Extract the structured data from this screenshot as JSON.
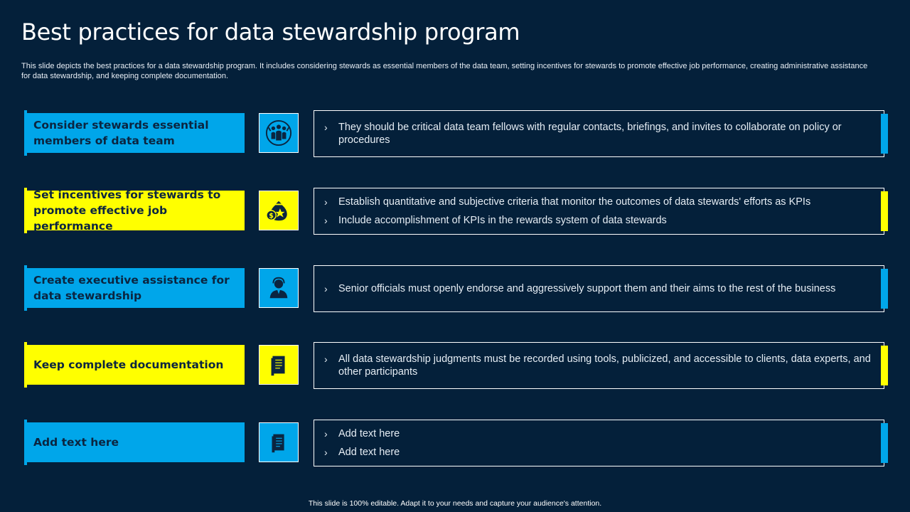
{
  "title": "Best practices for data stewardship program",
  "subtitle": "This slide depicts the best practices for a data stewardship program. It includes considering stewards as essential members of the data team, setting incentives for stewards to promote effective job performance, creating administrative assistance for data stewardship, and keeping complete documentation.",
  "rows": [
    {
      "label": "Consider stewards essential members of data team",
      "color": "blue",
      "icon": "team-icon",
      "bullets": [
        "They should be critical data team fellows with regular contacts, briefings, and invites to collaborate on policy or procedures"
      ]
    },
    {
      "label": "Set incentives for stewards to promote effective job performance",
      "color": "yellow",
      "icon": "money-bag-icon",
      "bullets": [
        "Establish quantitative and subjective criteria that monitor the outcomes of data stewards' efforts as KPIs",
        "Include accomplishment of KPIs in the rewards system of data stewards"
      ]
    },
    {
      "label": "Create executive assistance for data stewardship",
      "color": "blue",
      "icon": "executive-icon",
      "bullets": [
        "Senior officials must openly endorse and aggressively support them and their aims to the rest of the business"
      ]
    },
    {
      "label": "Keep complete documentation",
      "color": "yellow",
      "icon": "document-icon",
      "bullets": [
        "All data stewardship judgments must be recorded using tools, publicized, and accessible to clients, data experts, and other participants"
      ]
    },
    {
      "label": "Add text here",
      "color": "blue",
      "icon": "document-icon",
      "bullets": [
        "Add text here",
        "Add text here"
      ]
    }
  ],
  "footer": "This slide is 100% editable. Adapt it to your needs and capture your audience's attention.",
  "colors": {
    "background": "#04203a",
    "blue": "#00a6ea",
    "yellow": "#ffff00",
    "dark_text": "#0b2540"
  }
}
